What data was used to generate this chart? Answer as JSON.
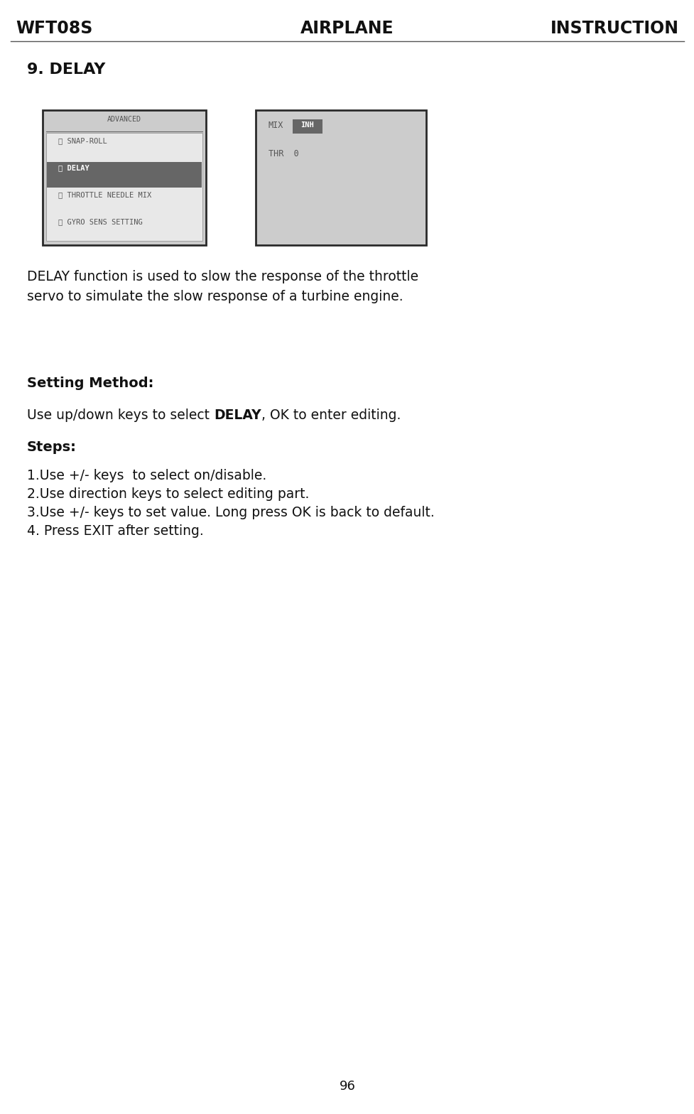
{
  "bg_color": "#ffffff",
  "header_left": "WFT08S",
  "header_center": "AIRPLANE",
  "header_right": "INSTRUCTION",
  "header_fontsize": 17,
  "section_title": "9. DELAY",
  "section_title_fontsize": 16,
  "desc_line1": "DELAY function is used to slow the response of the throttle",
  "desc_line2": "servo to simulate the slow response of a turbine engine.",
  "desc_fontsize": 13.5,
  "setting_method_label": "Setting Method:",
  "setting_method_fontsize": 14,
  "setting_method_pre": "Use up/down keys to select ",
  "setting_method_bold": "DELAY",
  "setting_method_post": ", OK to enter editing.",
  "setting_method_body_fontsize": 13.5,
  "steps_label": "Steps:",
  "steps_label_fontsize": 14,
  "steps": [
    "1.Use +/- keys  to select on/disable.",
    "2.Use direction keys to select editing part.",
    "3.Use +/- keys to set value. Long press OK is back to default.",
    "4. Press EXIT after setting."
  ],
  "steps_fontsize": 13.5,
  "page_number": "96",
  "page_fontsize": 13
}
